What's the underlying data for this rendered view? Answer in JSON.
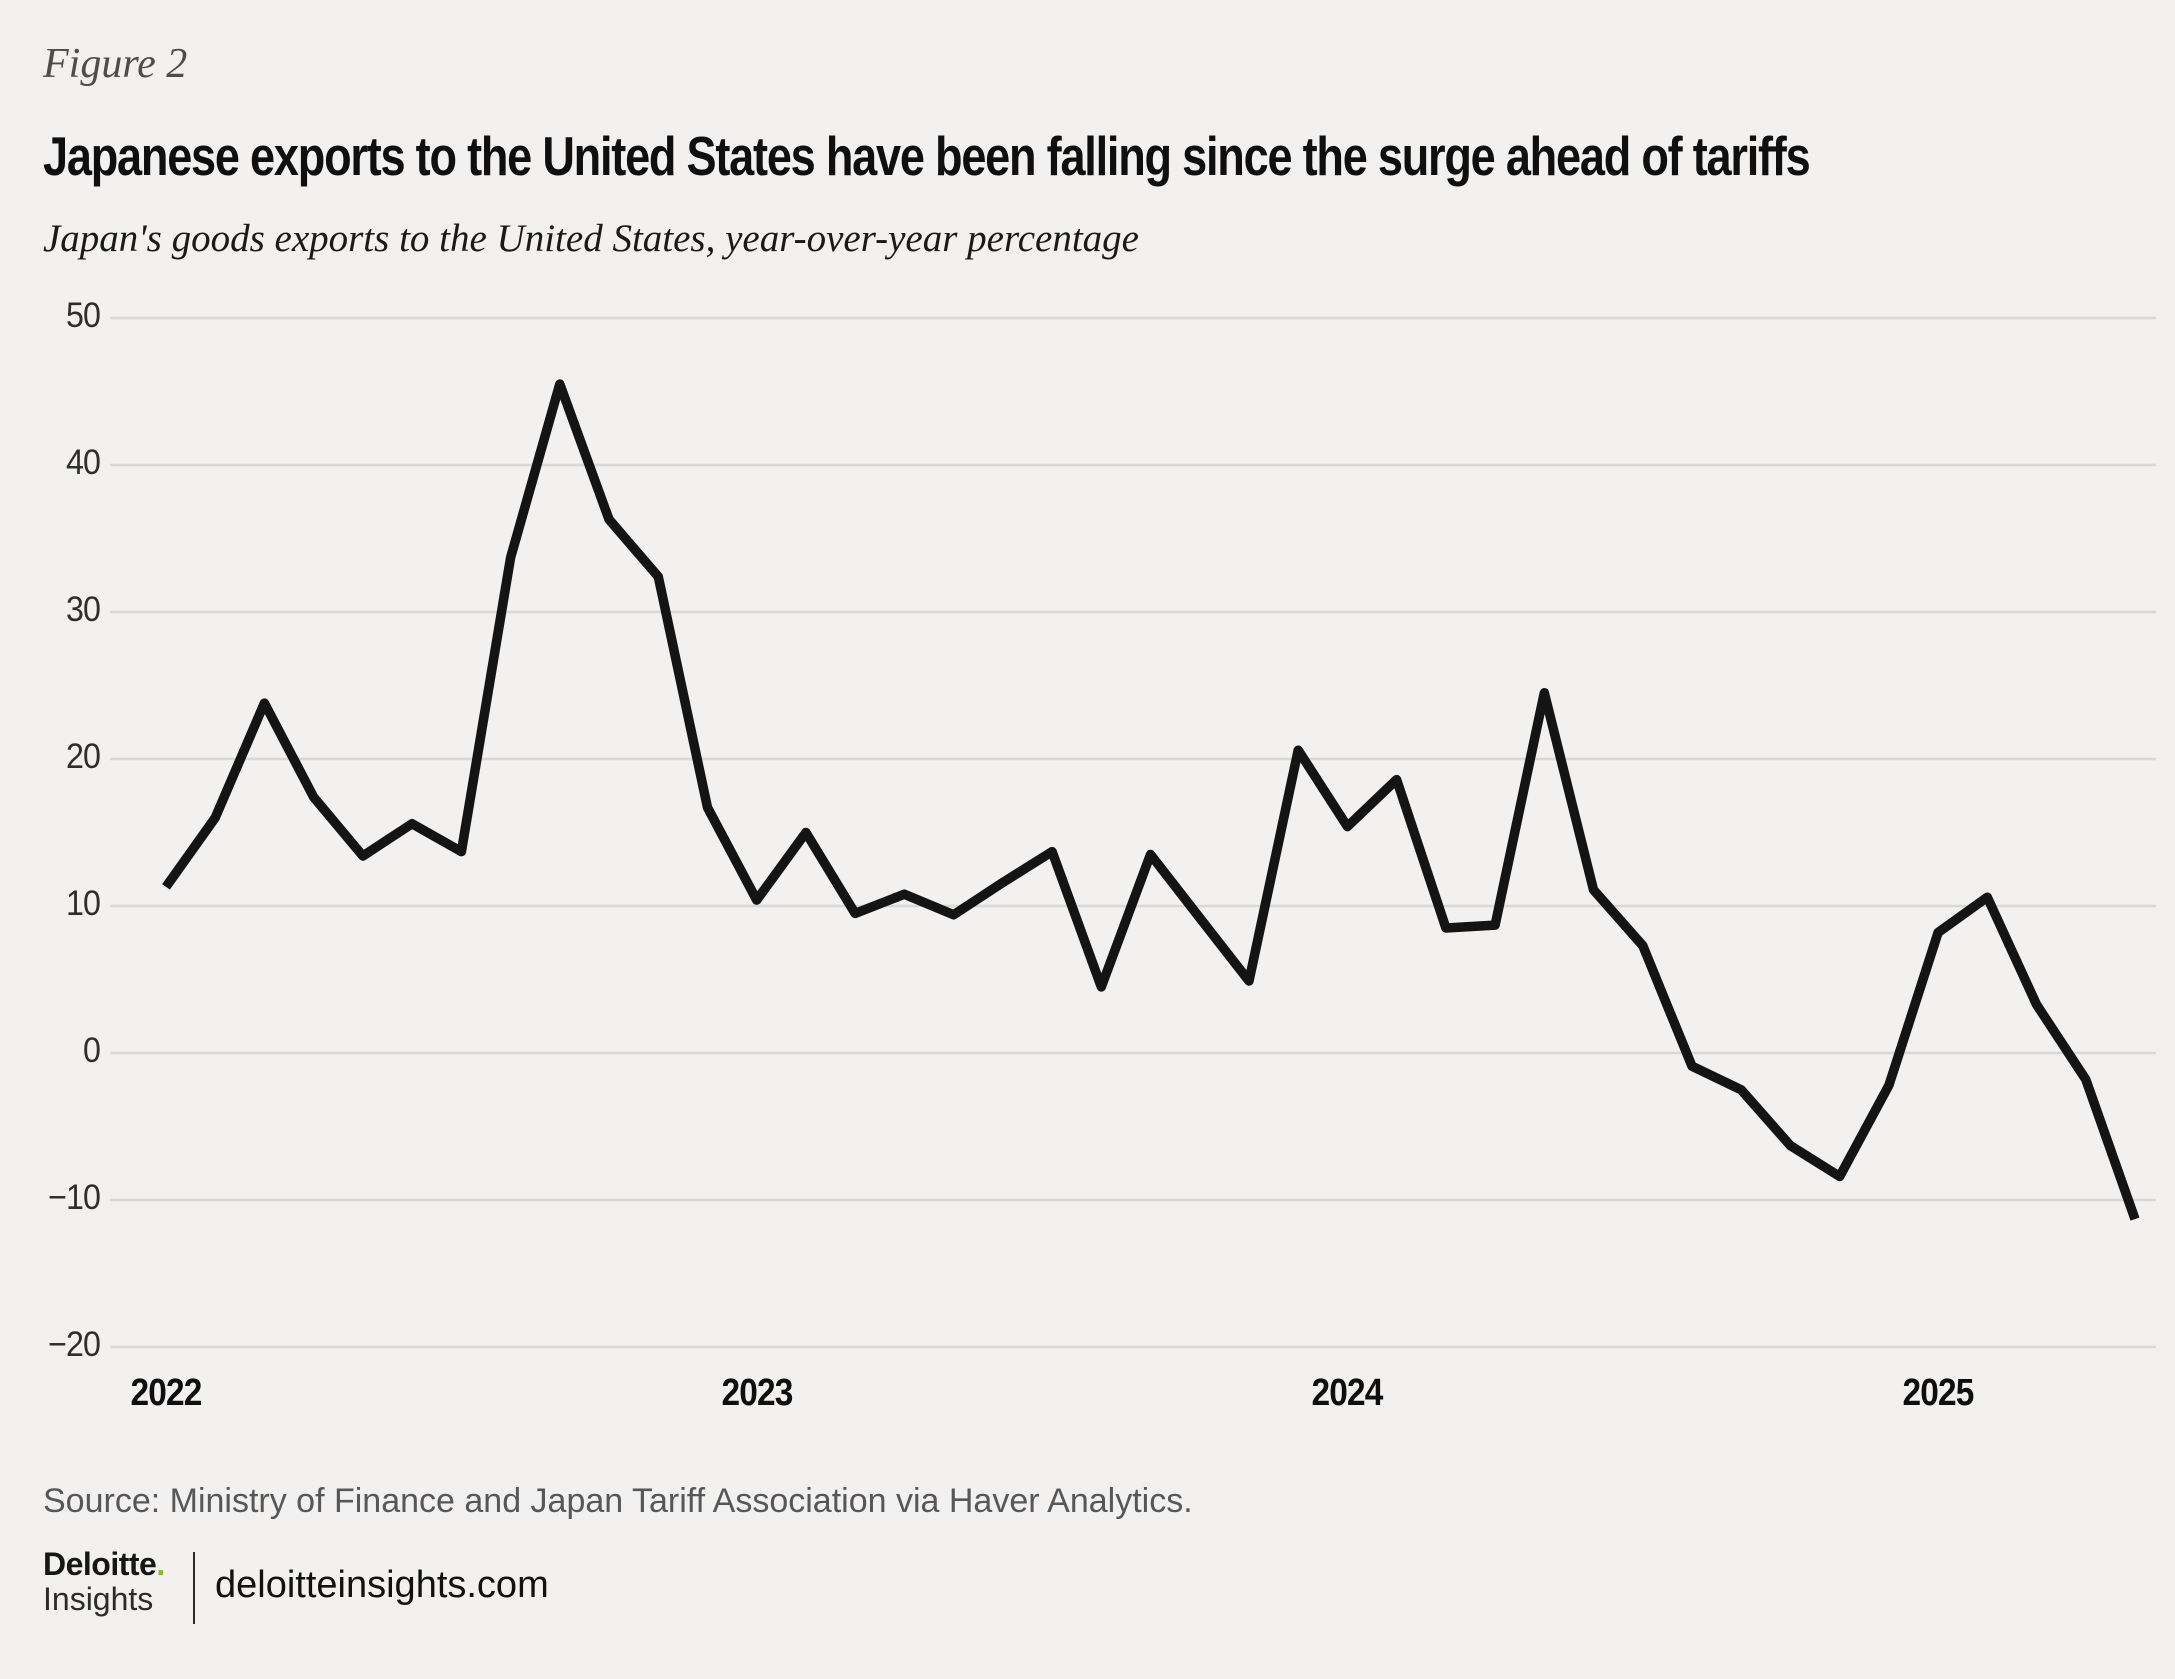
{
  "figure_label": "Figure 2",
  "title": "Japanese exports to the United States have been falling since the surge ahead of tariffs",
  "subtitle": "Japan's goods exports to the United States, year-over-year percentage",
  "source": "Source: Ministry of Finance and Japan Tariff Association via Haver Analytics.",
  "footer": {
    "brand": "Deloitte",
    "brand_dot": ".",
    "brand_sub": "Insights",
    "site": "deloitteinsights.com",
    "brand_dot_color": "#86BC25"
  },
  "colors": {
    "background": "#f2f1ef",
    "gridline": "#d8d8d5",
    "line": "#141414",
    "tick_text": "#2e2e2e",
    "source_text": "#55575a"
  },
  "chart_data": {
    "type": "line",
    "title": "Japanese exports to the United States have been falling since the surge ahead of tariffs",
    "subtitle": "Japan's goods exports to the United States, year-over-year percentage",
    "xlabel": "",
    "ylabel": "year-over-year percentage",
    "frequency": "monthly",
    "x": [
      "Jan 2022",
      "Feb 2022",
      "Mar 2022",
      "Apr 2022",
      "May 2022",
      "Jun 2022",
      "Jul 2022",
      "Aug 2022",
      "Sep 2022",
      "Oct 2022",
      "Nov 2022",
      "Dec 2022",
      "Jan 2023",
      "Feb 2023",
      "Mar 2023",
      "Apr 2023",
      "May 2023",
      "Jun 2023",
      "Jul 2023",
      "Aug 2023",
      "Sep 2023",
      "Oct 2023",
      "Nov 2023",
      "Dec 2023",
      "Jan 2024",
      "Feb 2024",
      "Mar 2024",
      "Apr 2024",
      "May 2024",
      "Jun 2024",
      "Jul 2024",
      "Aug 2024",
      "Sep 2024",
      "Oct 2024",
      "Nov 2024",
      "Dec 2024",
      "Jan 2025",
      "Feb 2025",
      "Mar 2025",
      "Apr 2025",
      "May 2025"
    ],
    "values": [
      11.3,
      16.0,
      23.8,
      17.4,
      13.4,
      15.6,
      13.7,
      33.7,
      45.5,
      36.3,
      32.4,
      16.7,
      10.4,
      15.0,
      9.5,
      10.8,
      9.4,
      11.6,
      13.7,
      4.5,
      13.5,
      9.2,
      4.9,
      20.6,
      15.4,
      18.6,
      8.5,
      8.7,
      24.5,
      11.1,
      7.3,
      -0.9,
      -2.5,
      -6.3,
      -8.4,
      -2.2,
      8.2,
      10.6,
      3.3,
      -1.8,
      -11.3
    ],
    "y_ticks": [
      {
        "label": "50",
        "value": 50
      },
      {
        "label": "40",
        "value": 40
      },
      {
        "label": "30",
        "value": 30
      },
      {
        "label": "20",
        "value": 20
      },
      {
        "label": "10",
        "value": 10
      },
      {
        "label": "0",
        "value": 0
      },
      {
        "label": "−10",
        "value": -10
      },
      {
        "label": "−20",
        "value": -20
      }
    ],
    "x_year_ticks": [
      {
        "label": "2022",
        "month_index": 0
      },
      {
        "label": "2023",
        "month_index": 12
      },
      {
        "label": "2024",
        "month_index": 24
      },
      {
        "label": "2025",
        "month_index": 36
      }
    ],
    "ylim": [
      -20,
      50
    ],
    "grid": "horizontal",
    "legend": "none",
    "line_color": "#141414",
    "line_width": 9.5
  }
}
